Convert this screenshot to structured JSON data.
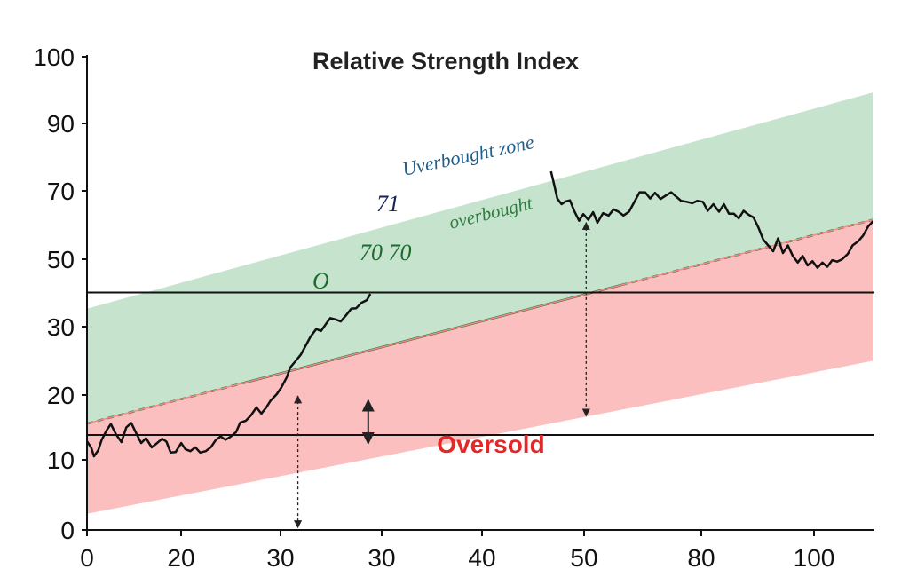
{
  "chart_data": {
    "type": "line",
    "title": "Relative Strength Index",
    "xlabel": "",
    "ylabel": "",
    "x_tick_labels": [
      "0",
      "20",
      "30",
      "30",
      "40",
      "50",
      "80",
      "100"
    ],
    "y_tick_labels": [
      "0",
      "10",
      "20",
      "30",
      "50",
      "70",
      "90",
      "100"
    ],
    "ylim": [
      0,
      100
    ],
    "grid": false,
    "reference_lines": [
      {
        "value": 50,
        "color": "#111111"
      },
      {
        "value": 20,
        "color": "#111111"
      }
    ],
    "bands": [
      {
        "name": "overbought-zone",
        "color": "#c5e3cd",
        "start": [
          46.6,
          22.4
        ],
        "end": [
          92.1,
          65.3
        ]
      },
      {
        "name": "oversold-zone",
        "color": "#fcbfbf",
        "start": [
          22.4,
          3.4
        ],
        "end": [
          65.3,
          35.6
        ]
      }
    ],
    "series": [
      {
        "color": "#111111",
        "segment_1": [
          [
            0,
            18.7
          ],
          [
            0.6,
            17.3
          ],
          [
            1.0,
            15.5
          ],
          [
            1.6,
            16.8
          ],
          [
            2.1,
            19.0
          ],
          [
            2.8,
            21.0
          ],
          [
            3.4,
            22.3
          ],
          [
            4.1,
            20.2
          ],
          [
            4.9,
            18.5
          ],
          [
            5.6,
            21.6
          ],
          [
            6.3,
            22.5
          ],
          [
            7.0,
            20.4
          ],
          [
            7.7,
            18.3
          ],
          [
            8.4,
            19.3
          ],
          [
            9.2,
            17.4
          ],
          [
            9.9,
            18.2
          ],
          [
            10.7,
            19.2
          ],
          [
            11.3,
            18.6
          ],
          [
            11.9,
            16.3
          ],
          [
            12.6,
            16.4
          ],
          [
            13.4,
            18.3
          ],
          [
            14.0,
            17.0
          ],
          [
            14.7,
            16.6
          ],
          [
            15.4,
            17.4
          ],
          [
            16.1,
            16.3
          ],
          [
            16.9,
            16.6
          ],
          [
            17.6,
            17.4
          ],
          [
            18.3,
            18.9
          ],
          [
            19.0,
            19.7
          ],
          [
            19.7,
            19.0
          ],
          [
            20.4,
            19.6
          ],
          [
            21.2,
            20.6
          ],
          [
            21.8,
            22.6
          ],
          [
            22.6,
            23.0
          ],
          [
            23.3,
            24.1
          ],
          [
            24.1,
            25.8
          ],
          [
            24.8,
            24.5
          ],
          [
            25.5,
            25.8
          ],
          [
            26.1,
            27.2
          ],
          [
            27.0,
            28.6
          ],
          [
            27.6,
            29.9
          ],
          [
            28.4,
            32.1
          ],
          [
            28.9,
            34.2
          ],
          [
            29.7,
            35.6
          ],
          [
            30.4,
            36.9
          ],
          [
            31.0,
            38.5
          ],
          [
            31.8,
            40.7
          ],
          [
            32.6,
            42.3
          ],
          [
            33.3,
            41.9
          ],
          [
            34.0,
            43.4
          ],
          [
            34.6,
            44.6
          ],
          [
            35.4,
            44.3
          ],
          [
            36.1,
            43.9
          ],
          [
            36.8,
            45.1
          ],
          [
            37.6,
            46.6
          ],
          [
            38.3,
            46.7
          ],
          [
            39.0,
            47.8
          ],
          [
            39.8,
            48.4
          ],
          [
            40.3,
            49.7
          ]
        ],
        "segment_2": [
          [
            66.0,
            75.5
          ],
          [
            66.4,
            73.0
          ],
          [
            66.9,
            69.8
          ],
          [
            67.5,
            68.6
          ],
          [
            68.1,
            69.2
          ],
          [
            68.7,
            69.4
          ],
          [
            69.3,
            67.2
          ],
          [
            70.0,
            65.1
          ],
          [
            70.6,
            66.5
          ],
          [
            71.3,
            65.3
          ],
          [
            72.0,
            66.9
          ],
          [
            72.6,
            64.7
          ],
          [
            73.4,
            66.7
          ],
          [
            74.2,
            66.2
          ],
          [
            74.9,
            67.5
          ],
          [
            75.6,
            67.0
          ],
          [
            76.3,
            66.2
          ],
          [
            77.1,
            67.0
          ],
          [
            77.8,
            68.9
          ],
          [
            78.6,
            71.1
          ],
          [
            79.4,
            71.1
          ],
          [
            80.1,
            69.8
          ],
          [
            80.8,
            71.0
          ],
          [
            81.6,
            69.7
          ],
          [
            82.3,
            70.4
          ],
          [
            83.1,
            71.1
          ],
          [
            83.8,
            70.2
          ],
          [
            84.5,
            69.3
          ],
          [
            85.3,
            69.1
          ],
          [
            86.1,
            68.8
          ],
          [
            86.8,
            69.3
          ],
          [
            87.6,
            69.1
          ],
          [
            88.3,
            67.2
          ],
          [
            89.1,
            68.6
          ],
          [
            89.9,
            67.0
          ],
          [
            90.6,
            68.6
          ],
          [
            91.3,
            66.6
          ],
          [
            92.0,
            66.6
          ],
          [
            92.7,
            65.6
          ],
          [
            93.4,
            67.2
          ],
          [
            94.1,
            66.4
          ],
          [
            94.8,
            65.8
          ],
          [
            95.5,
            63.7
          ],
          [
            96.2,
            61.1
          ],
          [
            96.9,
            59.9
          ],
          [
            97.6,
            58.7
          ],
          [
            98.3,
            61.4
          ],
          [
            99.0,
            58.3
          ],
          [
            99.7,
            59.9
          ],
          [
            100.4,
            57.7
          ],
          [
            101.1,
            56.3
          ],
          [
            101.8,
            57.7
          ],
          [
            102.5,
            55.7
          ],
          [
            103.2,
            56.6
          ],
          [
            103.9,
            55.2
          ],
          [
            104.6,
            56.3
          ],
          [
            105.3,
            55.4
          ],
          [
            106.0,
            56.8
          ],
          [
            106.7,
            56.5
          ],
          [
            107.4,
            57.0
          ],
          [
            108.2,
            58.1
          ],
          [
            108.9,
            59.9
          ],
          [
            109.7,
            60.8
          ],
          [
            110.4,
            62.0
          ],
          [
            111.1,
            63.9
          ],
          [
            111.8,
            65.0
          ]
        ]
      }
    ],
    "x_range": [
      0,
      112
    ],
    "arrows": [
      {
        "x": 40,
        "from": 27.3,
        "to": 18.2
      },
      {
        "x": 30,
        "from": 28.2,
        "to": 0.5
      },
      {
        "x": 71,
        "from": 64.7,
        "to": 24.0
      }
    ],
    "annotations": [
      {
        "text": "Oversold",
        "color": "#e32828"
      },
      {
        "text": "Uverbought zone",
        "color": "#1f5f8b"
      },
      {
        "text": "71",
        "color": "#16225a"
      },
      {
        "text": "O",
        "color": "#1c6b2c"
      },
      {
        "text": "70 70",
        "color": "#1c6b2c"
      },
      {
        "text": "overbought",
        "color": "#2e7d3f"
      }
    ]
  }
}
